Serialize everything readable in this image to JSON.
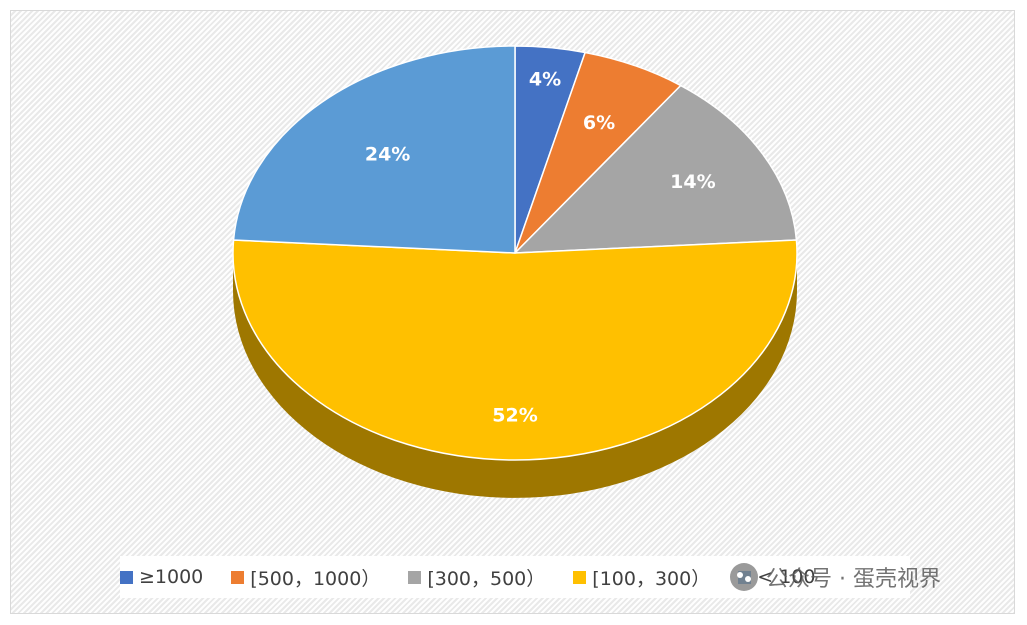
{
  "chart_data": {
    "type": "pie",
    "style": "3d",
    "categories": [
      "≥1000",
      "[500，1000）",
      "[300，500）",
      "[100，300）",
      "< 100"
    ],
    "values": [
      4,
      6,
      14,
      52,
      24
    ],
    "labels": [
      "4%",
      "6%",
      "14%",
      "52%",
      "24%"
    ],
    "colors": [
      "#4472c4",
      "#ed7d31",
      "#a5a5a5",
      "#ffc000",
      "#5b9bd5"
    ],
    "legend_position": "bottom",
    "start_angle_deg": 0,
    "direction": "clockwise"
  },
  "legend": {
    "items": [
      {
        "label": "≥1000",
        "color": "#4472c4"
      },
      {
        "label": "[500，1000）",
        "color": "#ed7d31"
      },
      {
        "label": "[300，500）",
        "color": "#a5a5a5"
      },
      {
        "label": "[100，300）",
        "color": "#ffc000"
      },
      {
        "label": "< 100",
        "color": "#5b9bd5"
      }
    ]
  },
  "watermark": {
    "text": "公众号 · 蛋壳视界",
    "icon": "wechat-icon"
  }
}
